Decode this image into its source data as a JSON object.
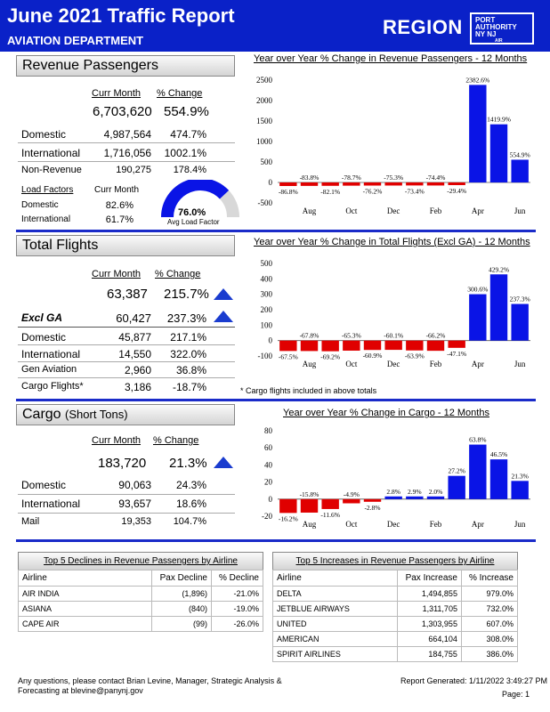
{
  "header": {
    "title": "June 2021 Traffic Report",
    "department": "AVIATION DEPARTMENT",
    "region": "REGION",
    "logo_lines": [
      "PORT",
      "AUTHORITY",
      "NY NJ"
    ],
    "logo_sub": "AIR"
  },
  "revenue": {
    "title": "Revenue Passengers",
    "col_curr": "Curr Month",
    "col_change": "% Change",
    "total_value": "6,703,620",
    "total_change": "554.9%",
    "rows": [
      {
        "label": "Domestic",
        "value": "4,987,564",
        "change": "474.7%"
      },
      {
        "label": "International",
        "value": "1,716,056",
        "change": "1002.1%"
      },
      {
        "label": "Non-Revenue",
        "value": "190,275",
        "change": "178.4%"
      }
    ],
    "load_factors_label": "Load Factors",
    "lf_curr_label": "Curr Month",
    "lf_rows": [
      {
        "label": "Domestic",
        "value": "82.6%"
      },
      {
        "label": "International",
        "value": "61.7%"
      }
    ],
    "gauge_value": "76.0%",
    "gauge_fraction": 0.76,
    "gauge_label": "Avg Load Factor"
  },
  "flights": {
    "title": "Total Flights",
    "col_curr": "Curr Month",
    "col_change": "% Change",
    "total_value": "63,387",
    "total_change": "215.7%",
    "exclga_label": "Excl GA",
    "exclga_value": "60,427",
    "exclga_change": "237.3%",
    "rows": [
      {
        "label": "Domestic",
        "value": "45,877",
        "change": "217.1%"
      },
      {
        "label": "International",
        "value": "14,550",
        "change": "322.0%"
      },
      {
        "label": "Gen Aviation",
        "value": "2,960",
        "change": "36.8%"
      },
      {
        "label": "Cargo Flights*",
        "value": "3,186",
        "change": "-18.7%"
      }
    ],
    "note": "* Cargo flights included in above totals"
  },
  "cargo": {
    "title": "Cargo",
    "title_small": "(Short Tons)",
    "col_curr": "Curr Month",
    "col_change": "% Change",
    "total_value": "183,720",
    "total_change": "21.3%",
    "rows": [
      {
        "label": "Domestic",
        "value": "90,063",
        "change": "24.3%"
      },
      {
        "label": "International",
        "value": "93,657",
        "change": "18.6%"
      },
      {
        "label": "Mail",
        "value": "19,353",
        "change": "104.7%"
      }
    ]
  },
  "chart_data": [
    {
      "type": "bar",
      "title": "Year over Year % Change in Revenue Passengers - 12 Months",
      "categories": [
        "Jul",
        "Aug",
        "Sep",
        "Oct",
        "Nov",
        "Dec",
        "Jan",
        "Feb",
        "Mar",
        "Apr",
        "May",
        "Jun"
      ],
      "values": [
        -86.8,
        -83.8,
        -82.1,
        -78.7,
        -76.2,
        -75.3,
        -73.4,
        -74.4,
        -29.4,
        2382.6,
        1419.9,
        554.9
      ],
      "data_labels": [
        "-86.8%",
        "-83.8%",
        "-82.1%",
        "-78.7%",
        "-76.2%",
        "-75.3%",
        "-73.4%",
        "-74.4%",
        "-29.4%",
        "2382.6%",
        "1419.9%",
        "554.9%"
      ],
      "x_tick_labels": [
        "Aug",
        "Oct",
        "Dec",
        "Feb",
        "Apr",
        "Jun"
      ],
      "y_ticks": [
        "2500",
        "2000",
        "1500",
        "1000",
        "500",
        "0",
        "-500"
      ],
      "ylim": [
        -500,
        2500
      ]
    },
    {
      "type": "bar",
      "title": "Year over Year % Change in Total Flights (Excl GA) - 12 Months",
      "categories": [
        "Jul",
        "Aug",
        "Sep",
        "Oct",
        "Nov",
        "Dec",
        "Jan",
        "Feb",
        "Mar",
        "Apr",
        "May",
        "Jun"
      ],
      "values": [
        -67.5,
        -67.8,
        -69.2,
        -65.3,
        -60.9,
        -60.1,
        -63.9,
        -66.2,
        -47.1,
        300.6,
        429.2,
        237.3
      ],
      "data_labels": [
        "-67.5%",
        "-67.8%",
        "-69.2%",
        "-65.3%",
        "-60.9%",
        "-60.1%",
        "-63.9%",
        "-66.2%",
        "-47.1%",
        "300.6%",
        "429.2%",
        "237.3%"
      ],
      "x_tick_labels": [
        "Aug",
        "Oct",
        "Dec",
        "Feb",
        "Apr",
        "Jun"
      ],
      "y_ticks": [
        "500",
        "400",
        "300",
        "200",
        "100",
        "0",
        "-100"
      ],
      "ylim": [
        -100,
        500
      ]
    },
    {
      "type": "bar",
      "title": "Year over Year % Change in Cargo - 12 Months",
      "categories": [
        "Jul",
        "Aug",
        "Sep",
        "Oct",
        "Nov",
        "Dec",
        "Jan",
        "Feb",
        "Mar",
        "Apr",
        "May",
        "Jun"
      ],
      "values": [
        -16.2,
        -15.8,
        -11.6,
        -4.9,
        -2.8,
        2.8,
        2.9,
        2.0,
        27.2,
        63.8,
        46.5,
        21.3
      ],
      "data_labels": [
        "-16.2%",
        "-15.8%",
        "-11.6%",
        "-4.9%",
        "-2.8%",
        "2.8%",
        "2.9%",
        "2.0%",
        "27.2%",
        "63.8%",
        "46.5%",
        "21.3%"
      ],
      "x_tick_labels": [
        "Aug",
        "Oct",
        "Dec",
        "Feb",
        "Apr",
        "Jun"
      ],
      "y_ticks": [
        "80",
        "60",
        "40",
        "20",
        "0",
        "-20"
      ],
      "ylim": [
        -20,
        80
      ]
    }
  ],
  "declines": {
    "title": "Top 5 Declines in Revenue Passengers by Airline",
    "headers": [
      "Airline",
      "Pax Decline",
      "% Decline"
    ],
    "rows": [
      [
        "AIR INDIA",
        "(1,896)",
        "-21.0%"
      ],
      [
        "ASIANA",
        "(840)",
        "-19.0%"
      ],
      [
        "CAPE AIR",
        "(99)",
        "-26.0%"
      ]
    ]
  },
  "increases": {
    "title": "Top 5 Increases in Revenue Passengers by Airline",
    "headers": [
      "Airline",
      "Pax Increase",
      "% Increase"
    ],
    "rows": [
      [
        "DELTA",
        "1,494,855",
        "979.0%"
      ],
      [
        "JETBLUE AIRWAYS",
        "1,311,705",
        "732.0%"
      ],
      [
        "UNITED",
        "1,303,955",
        "607.0%"
      ],
      [
        "AMERICAN",
        "664,104",
        "308.0%"
      ],
      [
        "SPIRIT AIRLINES",
        "184,755",
        "386.0%"
      ]
    ]
  },
  "footer": {
    "contact_line1": "Any questions, please contact Brian Levine, Manager, Strategic Analysis &",
    "contact_line2": "Forecasting at blevine@panynj.gov",
    "generated": "Report Generated:  1/11/2022 3:49:27 PM",
    "page": "Page: 1"
  },
  "colors": {
    "brand_blue": "#0a21c8",
    "bar_positive": "#0a14e6",
    "bar_negative": "#e00000",
    "arrow": "#1a3ccf"
  }
}
